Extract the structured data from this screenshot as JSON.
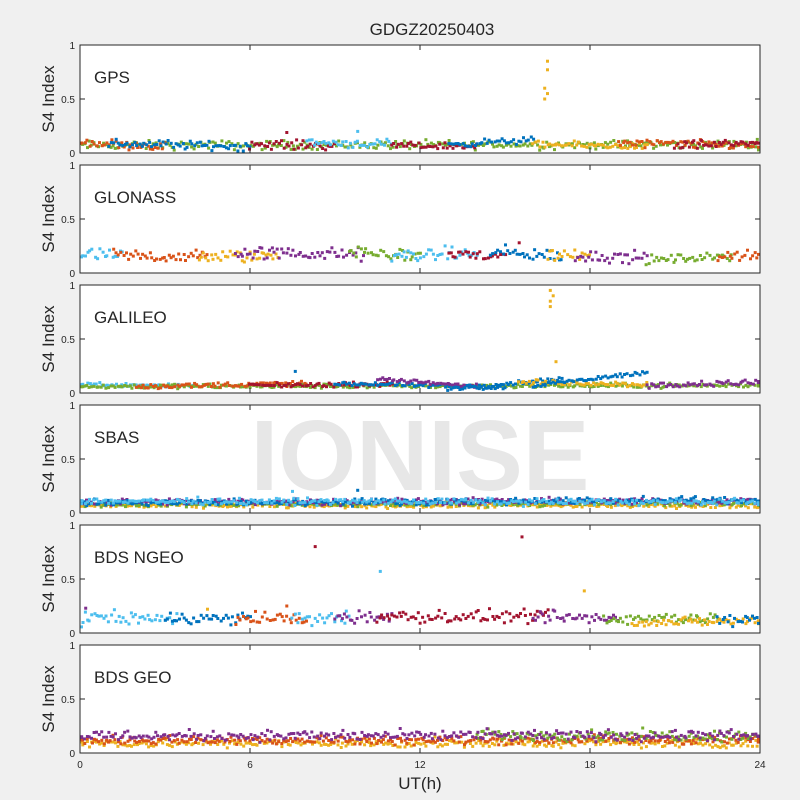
{
  "figure": {
    "title": "GDGZ20250403",
    "xlabel": "UT(h)",
    "ylabel": "S4 Index",
    "watermark": "IONISE"
  },
  "colors": [
    "#0072BD",
    "#D95319",
    "#EDB120",
    "#7E2F8E",
    "#77AC30",
    "#4DBEEE",
    "#A2142F"
  ],
  "chart_data": [
    {
      "type": "scatter",
      "name": "GPS",
      "xlim": [
        0,
        24
      ],
      "ylim": [
        0,
        1
      ],
      "xticks": [
        0,
        6,
        12,
        18,
        24
      ],
      "yticks": [
        0,
        0.5,
        1
      ],
      "series": [
        {
          "color": "#77AC30",
          "x": [
            0,
            24
          ],
          "y": [
            0.07,
            0.08
          ],
          "noise": 0.02
        },
        {
          "color": "#D95319",
          "x": [
            0,
            3
          ],
          "y": [
            0.1,
            0.06
          ],
          "noise": 0.02
        },
        {
          "color": "#0072BD",
          "x": [
            1,
            6
          ],
          "y": [
            0.09,
            0.06
          ],
          "noise": 0.02
        },
        {
          "color": "#A2142F",
          "x": [
            6,
            9
          ],
          "y": [
            0.08,
            0.07
          ],
          "noise": 0.02
        },
        {
          "color": "#4DBEEE",
          "x": [
            8,
            11
          ],
          "y": [
            0.1,
            0.08
          ],
          "noise": 0.02
        },
        {
          "color": "#A2142F",
          "x": [
            11,
            14
          ],
          "y": [
            0.07,
            0.06
          ],
          "noise": 0.015
        },
        {
          "color": "#0072BD",
          "x": [
            13,
            16
          ],
          "y": [
            0.08,
            0.12
          ],
          "noise": 0.015
        },
        {
          "color": "#EDB120",
          "x": [
            16,
            20
          ],
          "y": [
            0.08,
            0.06
          ],
          "noise": 0.015
        },
        {
          "color": "#D95319",
          "x": [
            19,
            24
          ],
          "y": [
            0.09,
            0.07
          ],
          "noise": 0.02
        },
        {
          "color": "#A2142F",
          "x": [
            21,
            24
          ],
          "y": [
            0.06,
            0.1
          ],
          "noise": 0.02
        }
      ],
      "outliers": [
        {
          "color": "#EDB120",
          "x": 16.5,
          "y": 0.85
        },
        {
          "color": "#EDB120",
          "x": 16.5,
          "y": 0.77
        },
        {
          "color": "#EDB120",
          "x": 16.4,
          "y": 0.6
        },
        {
          "color": "#EDB120",
          "x": 16.5,
          "y": 0.55
        },
        {
          "color": "#EDB120",
          "x": 16.4,
          "y": 0.5
        },
        {
          "color": "#A2142F",
          "x": 7.3,
          "y": 0.19
        },
        {
          "color": "#4DBEEE",
          "x": 9.8,
          "y": 0.2
        }
      ]
    },
    {
      "type": "scatter",
      "name": "GLONASS",
      "xlim": [
        0,
        24
      ],
      "ylim": [
        0,
        1
      ],
      "xticks": [
        0,
        6,
        12,
        18,
        24
      ],
      "yticks": [
        0,
        0.5,
        1
      ],
      "series": [
        {
          "color": "#4DBEEE",
          "x": [
            0,
            1.5
          ],
          "y": [
            0.17,
            0.16
          ],
          "noise": 0.03
        },
        {
          "color": "#D95319",
          "x": [
            1.2,
            4.5
          ],
          "y": [
            0.16,
            0.15
          ],
          "noise": 0.03
        },
        {
          "color": "#EDB120",
          "x": [
            4.2,
            7
          ],
          "y": [
            0.15,
            0.16
          ],
          "noise": 0.03
        },
        {
          "color": "#7E2F8E",
          "x": [
            5.5,
            10
          ],
          "y": [
            0.19,
            0.17
          ],
          "noise": 0.03
        },
        {
          "color": "#77AC30",
          "x": [
            9.5,
            12
          ],
          "y": [
            0.19,
            0.16
          ],
          "noise": 0.03
        },
        {
          "color": "#4DBEEE",
          "x": [
            11,
            14
          ],
          "y": [
            0.16,
            0.18
          ],
          "noise": 0.03
        },
        {
          "color": "#A2142F",
          "x": [
            13,
            15
          ],
          "y": [
            0.18,
            0.15
          ],
          "noise": 0.03
        },
        {
          "color": "#0072BD",
          "x": [
            14.5,
            17
          ],
          "y": [
            0.19,
            0.16
          ],
          "noise": 0.03
        },
        {
          "color": "#EDB120",
          "x": [
            16.5,
            18
          ],
          "y": [
            0.16,
            0.17
          ],
          "noise": 0.03
        },
        {
          "color": "#7E2F8E",
          "x": [
            17.5,
            20
          ],
          "y": [
            0.16,
            0.14
          ],
          "noise": 0.03
        },
        {
          "color": "#77AC30",
          "x": [
            20,
            23
          ],
          "y": [
            0.12,
            0.15
          ],
          "noise": 0.02
        },
        {
          "color": "#D95319",
          "x": [
            22.5,
            24
          ],
          "y": [
            0.17,
            0.16
          ],
          "noise": 0.03
        }
      ],
      "outliers": [
        {
          "color": "#A2142F",
          "x": 15.5,
          "y": 0.28
        }
      ]
    },
    {
      "type": "scatter",
      "name": "GALILEO",
      "xlim": [
        0,
        24
      ],
      "ylim": [
        0,
        1
      ],
      "xticks": [
        0,
        6,
        12,
        18,
        24
      ],
      "yticks": [
        0,
        0.5,
        1
      ],
      "series": [
        {
          "color": "#4DBEEE",
          "x": [
            0,
            4
          ],
          "y": [
            0.08,
            0.07
          ],
          "noise": 0.01
        },
        {
          "color": "#77AC30",
          "x": [
            0,
            24
          ],
          "y": [
            0.06,
            0.07
          ],
          "noise": 0.01
        },
        {
          "color": "#D95319",
          "x": [
            2,
            8
          ],
          "y": [
            0.06,
            0.09
          ],
          "noise": 0.012
        },
        {
          "color": "#A2142F",
          "x": [
            6,
            11
          ],
          "y": [
            0.07,
            0.08
          ],
          "noise": 0.01
        },
        {
          "color": "#0072BD",
          "x": [
            9,
            15
          ],
          "y": [
            0.09,
            0.05
          ],
          "noise": 0.01
        },
        {
          "color": "#7E2F8E",
          "x": [
            10.5,
            14
          ],
          "y": [
            0.13,
            0.06
          ],
          "noise": 0.01
        },
        {
          "color": "#0072BD",
          "x": [
            13,
            17
          ],
          "y": [
            0.04,
            0.13
          ],
          "noise": 0.01
        },
        {
          "color": "#EDB120",
          "x": [
            15.5,
            20
          ],
          "y": [
            0.1,
            0.08
          ],
          "noise": 0.012
        },
        {
          "color": "#0072BD",
          "x": [
            16,
            20
          ],
          "y": [
            0.07,
            0.19
          ],
          "noise": 0.01
        },
        {
          "color": "#7E2F8E",
          "x": [
            20,
            24
          ],
          "y": [
            0.07,
            0.1
          ],
          "noise": 0.012
        }
      ],
      "outliers": [
        {
          "color": "#EDB120",
          "x": 16.6,
          "y": 0.95
        },
        {
          "color": "#EDB120",
          "x": 16.7,
          "y": 0.9
        },
        {
          "color": "#EDB120",
          "x": 16.6,
          "y": 0.85
        },
        {
          "color": "#EDB120",
          "x": 16.6,
          "y": 0.8
        },
        {
          "color": "#EDB120",
          "x": 16.8,
          "y": 0.29
        },
        {
          "color": "#0072BD",
          "x": 7.6,
          "y": 0.2
        }
      ]
    },
    {
      "type": "scatter",
      "name": "SBAS",
      "xlim": [
        0,
        24
      ],
      "ylim": [
        0,
        1
      ],
      "xticks": [
        0,
        6,
        12,
        18,
        24
      ],
      "yticks": [
        0,
        0.5,
        1
      ],
      "series": [
        {
          "color": "#EDB120",
          "x": [
            0,
            24
          ],
          "y": [
            0.07,
            0.07
          ],
          "noise": 0.012
        },
        {
          "color": "#77AC30",
          "x": [
            0,
            24
          ],
          "y": [
            0.08,
            0.09
          ],
          "noise": 0.012
        },
        {
          "color": "#7E2F8E",
          "x": [
            0,
            24
          ],
          "y": [
            0.1,
            0.11
          ],
          "noise": 0.015
        },
        {
          "color": "#0072BD",
          "x": [
            0,
            24
          ],
          "y": [
            0.09,
            0.12
          ],
          "noise": 0.015
        },
        {
          "color": "#4DBEEE",
          "x": [
            0,
            24
          ],
          "y": [
            0.11,
            0.1
          ],
          "noise": 0.015
        }
      ],
      "outliers": [
        {
          "color": "#4DBEEE",
          "x": 7.5,
          "y": 0.2
        },
        {
          "color": "#0072BD",
          "x": 9.8,
          "y": 0.21
        }
      ]
    },
    {
      "type": "scatter",
      "name": "BDS NGEO",
      "xlim": [
        0,
        24
      ],
      "ylim": [
        0,
        1
      ],
      "xticks": [
        0,
        6,
        12,
        18,
        24
      ],
      "yticks": [
        0,
        0.5,
        1
      ],
      "series": [
        {
          "color": "#4DBEEE",
          "x": [
            0,
            3.5
          ],
          "y": [
            0.14,
            0.13
          ],
          "noise": 0.03
        },
        {
          "color": "#0072BD",
          "x": [
            3,
            6
          ],
          "y": [
            0.14,
            0.13
          ],
          "noise": 0.03
        },
        {
          "color": "#D95319",
          "x": [
            5.5,
            8
          ],
          "y": [
            0.14,
            0.13
          ],
          "noise": 0.03
        },
        {
          "color": "#4DBEEE",
          "x": [
            7.5,
            9.5
          ],
          "y": [
            0.12,
            0.14
          ],
          "noise": 0.03
        },
        {
          "color": "#7E2F8E",
          "x": [
            9,
            11
          ],
          "y": [
            0.14,
            0.15
          ],
          "noise": 0.03
        },
        {
          "color": "#A2142F",
          "x": [
            10.5,
            16.5
          ],
          "y": [
            0.15,
            0.15
          ],
          "noise": 0.03
        },
        {
          "color": "#7E2F8E",
          "x": [
            16,
            19
          ],
          "y": [
            0.14,
            0.14
          ],
          "noise": 0.03
        },
        {
          "color": "#77AC30",
          "x": [
            18.5,
            22.5
          ],
          "y": [
            0.13,
            0.14
          ],
          "noise": 0.025
        },
        {
          "color": "#EDB120",
          "x": [
            19.5,
            24
          ],
          "y": [
            0.1,
            0.11
          ],
          "noise": 0.02
        },
        {
          "color": "#0072BD",
          "x": [
            22.5,
            24
          ],
          "y": [
            0.13,
            0.14
          ],
          "noise": 0.03
        }
      ],
      "outliers": [
        {
          "color": "#A2142F",
          "x": 8.3,
          "y": 0.8
        },
        {
          "color": "#A2142F",
          "x": 15.6,
          "y": 0.89
        },
        {
          "color": "#4DBEEE",
          "x": 10.6,
          "y": 0.57
        },
        {
          "color": "#EDB120",
          "x": 17.8,
          "y": 0.39
        },
        {
          "color": "#7E2F8E",
          "x": 0.2,
          "y": 0.23
        },
        {
          "color": "#D95319",
          "x": 7.3,
          "y": 0.25
        },
        {
          "color": "#EDB120",
          "x": 4.5,
          "y": 0.22
        }
      ]
    },
    {
      "type": "scatter",
      "name": "BDS GEO",
      "xlim": [
        0,
        24
      ],
      "ylim": [
        0,
        1
      ],
      "xticks": [
        0,
        6,
        12,
        18,
        24
      ],
      "yticks": [
        0,
        0.5,
        1
      ],
      "series": [
        {
          "color": "#EDB120",
          "x": [
            0,
            24
          ],
          "y": [
            0.09,
            0.09
          ],
          "noise": 0.02
        },
        {
          "color": "#D95319",
          "x": [
            0,
            24
          ],
          "y": [
            0.12,
            0.12
          ],
          "noise": 0.02
        },
        {
          "color": "#77AC30",
          "x": [
            14,
            24
          ],
          "y": [
            0.17,
            0.16
          ],
          "noise": 0.025
        },
        {
          "color": "#7E2F8E",
          "x": [
            0,
            24
          ],
          "y": [
            0.16,
            0.16
          ],
          "noise": 0.025
        }
      ],
      "outliers": []
    }
  ]
}
